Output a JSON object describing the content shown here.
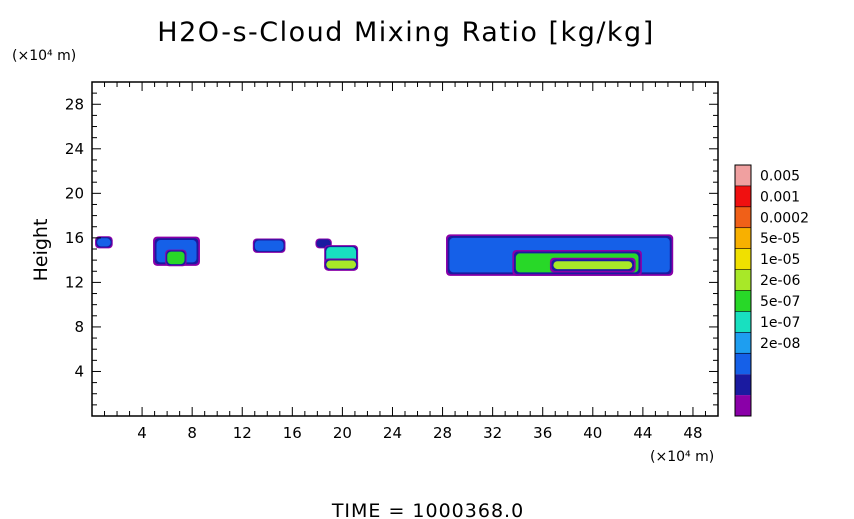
{
  "chart_data": {
    "type": "heatmap",
    "title": "H2O-s-Cloud Mixing Ratio [kg/kg]",
    "ylabel": "Height",
    "xunit": "(×10⁴ m)",
    "yunit": "(×10⁴ m)",
    "xlim": [
      0,
      50
    ],
    "ylim": [
      0,
      30
    ],
    "xticks": [
      4,
      8,
      12,
      16,
      20,
      24,
      28,
      32,
      36,
      40,
      44,
      48
    ],
    "yticks": [
      4,
      8,
      12,
      16,
      20,
      24,
      28
    ],
    "grid": false,
    "legend_position": "right",
    "colorbar": {
      "labels": [
        "0.005",
        "0.001",
        "0.0002",
        "5e-05",
        "1e-05",
        "2e-06",
        "5e-07",
        "1e-07",
        "2e-08"
      ],
      "colors": [
        "#8a00a8",
        "#1a1aa0",
        "#1560e8",
        "#1e9ef0",
        "#18e0c0",
        "#28d828",
        "#a8e828",
        "#f0e000",
        "#f8b000",
        "#f06018",
        "#f01010",
        "#f0a0a0"
      ]
    },
    "cloud_regions": [
      {
        "x_range": [
          0.2,
          1.7
        ],
        "y_range": [
          15.0,
          16.2
        ],
        "level_index": 2
      },
      {
        "x_range": [
          4.8,
          8.7
        ],
        "y_range": [
          13.4,
          16.2
        ],
        "level_index": 2
      },
      {
        "x_range": [
          5.8,
          7.6
        ],
        "y_range": [
          13.4,
          15.0
        ],
        "level_index": 5
      },
      {
        "x_range": [
          12.8,
          15.5
        ],
        "y_range": [
          14.6,
          16.0
        ],
        "level_index": 2
      },
      {
        "x_range": [
          17.8,
          19.2
        ],
        "y_range": [
          15.0,
          16.0
        ],
        "level_index": 1
      },
      {
        "x_range": [
          18.5,
          21.3
        ],
        "y_range": [
          13.0,
          15.4
        ],
        "level_index": 4
      },
      {
        "x_range": [
          18.5,
          21.3
        ],
        "y_range": [
          13.0,
          14.2
        ],
        "level_index": 6
      },
      {
        "x_range": [
          28.2,
          46.5
        ],
        "y_range": [
          12.5,
          16.4
        ],
        "level_index": 2
      },
      {
        "x_range": [
          33.5,
          44.0
        ],
        "y_range": [
          12.5,
          15.0
        ],
        "level_index": 5
      },
      {
        "x_range": [
          36.5,
          43.5
        ],
        "y_range": [
          12.8,
          14.3
        ],
        "level_index": 6
      }
    ]
  },
  "time_label": "TIME = 1000368.0"
}
